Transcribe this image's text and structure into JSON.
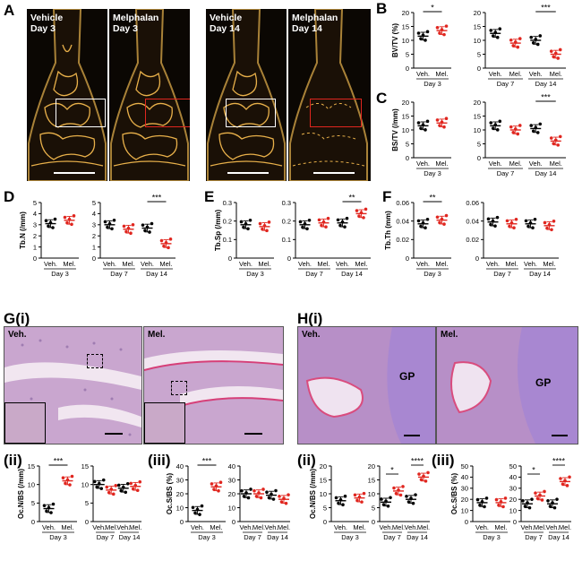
{
  "panel_labels": [
    "A",
    "B",
    "C",
    "D",
    "E",
    "F",
    "G(i)",
    "H(i)",
    "(ii)",
    "(iii)",
    "(ii)",
    "(iii)"
  ],
  "ct_images": [
    {
      "label1": "Vehicle",
      "label2": "Day 3",
      "roi_color": "#ffffff"
    },
    {
      "label1": "Melphalan",
      "label2": "Day 3",
      "roi_color": "#e0261f"
    },
    {
      "label1": "Vehicle",
      "label2": "Day 14",
      "roi_color": "#ffffff"
    },
    {
      "label1": "Melphalan",
      "label2": "Day 14",
      "roi_color": "#e0261f"
    }
  ],
  "histology": {
    "G": [
      {
        "label": "Veh."
      },
      {
        "label": "Mel."
      }
    ],
    "H": [
      {
        "label": "Veh.",
        "gp": "GP"
      },
      {
        "label": "Mel.",
        "gp": "GP"
      }
    ]
  },
  "colors": {
    "vehicle": "#000000",
    "melphalan": "#e0261f",
    "ct_bone": "#e8b04a"
  },
  "chart_data": [
    {
      "id": "B-day3",
      "type": "scatter",
      "ylabel": "BV/TV (%)",
      "ylim": [
        0,
        20
      ],
      "yticks": [
        0,
        5,
        10,
        15,
        20
      ],
      "categories": [
        "Veh.",
        "Mel."
      ],
      "days": [
        "Day 3"
      ],
      "series": [
        {
          "name": "Veh.",
          "values": [
            11.5
          ]
        },
        {
          "name": "Mel.",
          "values": [
            13.5
          ]
        }
      ],
      "sig": [
        {
          "label": "*"
        }
      ]
    },
    {
      "id": "B-day7-14",
      "type": "scatter",
      "ylim": [
        0,
        20
      ],
      "yticks": [
        0,
        5,
        10,
        15,
        20
      ],
      "categories": [
        "Veh.",
        "Mel.",
        "Veh.",
        "Mel."
      ],
      "days": [
        "Day 7",
        "Day 14"
      ],
      "series": [
        {
          "name": "Veh.",
          "values": [
            12.5,
            10
          ]
        },
        {
          "name": "Mel.",
          "values": [
            9,
            5
          ]
        }
      ],
      "sig": [
        {
          "label": "***"
        }
      ]
    },
    {
      "id": "C-day3",
      "type": "scatter",
      "ylabel": "BS/TV (/mm)",
      "ylim": [
        0,
        20
      ],
      "yticks": [
        0,
        5,
        10,
        15,
        20
      ],
      "categories": [
        "Veh.",
        "Mel."
      ],
      "days": [
        "Day 3"
      ],
      "series": [
        {
          "name": "Veh.",
          "values": [
            11.5
          ]
        },
        {
          "name": "Mel.",
          "values": [
            12.5
          ]
        }
      ],
      "sig": []
    },
    {
      "id": "C-day7-14",
      "type": "scatter",
      "ylim": [
        0,
        20
      ],
      "yticks": [
        0,
        5,
        10,
        15,
        20
      ],
      "categories": [
        "Veh.",
        "Mel.",
        "Veh.",
        "Mel."
      ],
      "days": [
        "Day 7",
        "Day 14"
      ],
      "series": [
        {
          "name": "Veh.",
          "values": [
            11.5,
            10.5
          ]
        },
        {
          "name": "Mel.",
          "values": [
            10,
            6
          ]
        }
      ],
      "sig": [
        {
          "label": "***"
        }
      ]
    },
    {
      "id": "D-day3",
      "type": "scatter",
      "ylabel": "Tb.N (/mm)",
      "ylim": [
        0,
        5
      ],
      "yticks": [
        0,
        1,
        2,
        3,
        4,
        5
      ],
      "categories": [
        "Veh.",
        "Mel."
      ],
      "days": [
        "Day 3"
      ],
      "series": [
        {
          "name": "Veh.",
          "values": [
            3.1
          ]
        },
        {
          "name": "Mel.",
          "values": [
            3.4
          ]
        }
      ],
      "sig": []
    },
    {
      "id": "D-day7-14",
      "type": "scatter",
      "ylim": [
        0,
        5
      ],
      "yticks": [
        0,
        1,
        2,
        3,
        4,
        5
      ],
      "categories": [
        "Veh.",
        "Mel.",
        "Veh.",
        "Mel."
      ],
      "days": [
        "Day 7",
        "Day 14"
      ],
      "series": [
        {
          "name": "Veh.",
          "values": [
            3,
            2.7
          ]
        },
        {
          "name": "Mel.",
          "values": [
            2.6,
            1.3
          ]
        }
      ],
      "sig": [
        {
          "label": "***"
        }
      ]
    },
    {
      "id": "E-day3",
      "type": "scatter",
      "ylabel": "Tb.Sp (/mm)",
      "ylim": [
        0,
        0.3
      ],
      "yticks": [
        0,
        0.1,
        0.2,
        0.3
      ],
      "categories": [
        "Veh.",
        "Mel."
      ],
      "days": [
        "Day 3"
      ],
      "series": [
        {
          "name": "Veh.",
          "values": [
            0.18
          ]
        },
        {
          "name": "Mel.",
          "values": [
            0.17
          ]
        }
      ],
      "sig": []
    },
    {
      "id": "E-day7-14",
      "type": "scatter",
      "ylim": [
        0,
        0.3
      ],
      "yticks": [
        0,
        0.1,
        0.2,
        0.3
      ],
      "categories": [
        "Veh.",
        "Mel.",
        "Veh.",
        "Mel."
      ],
      "days": [
        "Day 7",
        "Day 14"
      ],
      "series": [
        {
          "name": "Veh.",
          "values": [
            0.18,
            0.19
          ]
        },
        {
          "name": "Mel.",
          "values": [
            0.19,
            0.24
          ]
        }
      ],
      "sig": [
        {
          "label": "**"
        }
      ]
    },
    {
      "id": "F-day3",
      "type": "scatter",
      "ylabel": "Tb.Th (mm)",
      "ylim": [
        0,
        0.06
      ],
      "yticks": [
        0,
        0.02,
        0.04,
        0.06
      ],
      "categories": [
        "Veh.",
        "Mel."
      ],
      "days": [
        "Day 3"
      ],
      "series": [
        {
          "name": "Veh.",
          "values": [
            0.037
          ]
        },
        {
          "name": "Mel.",
          "values": [
            0.041
          ]
        }
      ],
      "sig": [
        {
          "label": "**"
        }
      ]
    },
    {
      "id": "F-day7-14",
      "type": "scatter",
      "ylim": [
        0,
        0.06
      ],
      "yticks": [
        0,
        0.02,
        0.04,
        0.06
      ],
      "categories": [
        "Veh.",
        "Mel.",
        "Veh.",
        "Mel."
      ],
      "days": [
        "Day 7",
        "Day 14"
      ],
      "series": [
        {
          "name": "Veh.",
          "values": [
            0.039,
            0.037
          ]
        },
        {
          "name": "Mel.",
          "values": [
            0.037,
            0.035
          ]
        }
      ],
      "sig": []
    },
    {
      "id": "Gii-day3",
      "type": "scatter",
      "ylabel": "Oc.N/BS (/mm)",
      "ylim": [
        0,
        15
      ],
      "yticks": [
        0,
        5,
        10,
        15
      ],
      "categories": [
        "Veh.",
        "Mel."
      ],
      "days": [
        "Day 3"
      ],
      "series": [
        {
          "name": "Veh.",
          "values": [
            3.5
          ]
        },
        {
          "name": "Mel.",
          "values": [
            11
          ]
        }
      ],
      "sig": [
        {
          "label": "***"
        }
      ]
    },
    {
      "id": "Gii-day7-14",
      "type": "scatter",
      "ylim": [
        0,
        15
      ],
      "yticks": [
        0,
        5,
        10,
        15
      ],
      "categories": [
        "Veh.",
        "Mel.",
        "Veh.",
        "Mel."
      ],
      "days": [
        "Day 7",
        "Day 14"
      ],
      "series": [
        {
          "name": "Veh.",
          "values": [
            10,
            9
          ]
        },
        {
          "name": "Mel.",
          "values": [
            8.5,
            9.5
          ]
        }
      ],
      "sig": []
    },
    {
      "id": "Giii-day3",
      "type": "scatter",
      "ylabel": "Oc.S/BS (%)",
      "ylim": [
        0,
        40
      ],
      "yticks": [
        0,
        10,
        20,
        30,
        40
      ],
      "categories": [
        "Veh.",
        "Mel."
      ],
      "days": [
        "Day 3"
      ],
      "series": [
        {
          "name": "Veh.",
          "values": [
            8
          ]
        },
        {
          "name": "Mel.",
          "values": [
            25
          ]
        }
      ],
      "sig": [
        {
          "label": "***"
        }
      ]
    },
    {
      "id": "Giii-day7-14",
      "type": "scatter",
      "ylim": [
        0,
        40
      ],
      "yticks": [
        0,
        10,
        20,
        30,
        40
      ],
      "categories": [
        "Veh.",
        "Mel.",
        "Veh.",
        "Mel."
      ],
      "days": [
        "Day 7",
        "Day 14"
      ],
      "series": [
        {
          "name": "Veh.",
          "values": [
            20,
            19
          ]
        },
        {
          "name": "Mel.",
          "values": [
            20,
            16
          ]
        }
      ],
      "sig": []
    },
    {
      "id": "Hii-day3",
      "type": "scatter",
      "ylabel": "Oc.N/BS (/mm)",
      "ylim": [
        0,
        20
      ],
      "yticks": [
        0,
        5,
        10,
        15,
        20
      ],
      "categories": [
        "Veh.",
        "Mel."
      ],
      "days": [
        "Day 3"
      ],
      "series": [
        {
          "name": "Veh.",
          "values": [
            7.5
          ]
        },
        {
          "name": "Mel.",
          "values": [
            8.5
          ]
        }
      ],
      "sig": []
    },
    {
      "id": "Hii-day7-14",
      "type": "scatter",
      "ylim": [
        0,
        20
      ],
      "yticks": [
        0,
        5,
        10,
        15,
        20
      ],
      "categories": [
        "Veh.",
        "Mel.",
        "Veh.",
        "Mel."
      ],
      "days": [
        "Day 7",
        "Day 14"
      ],
      "series": [
        {
          "name": "Veh.",
          "values": [
            7,
            8
          ]
        },
        {
          "name": "Mel.",
          "values": [
            11,
            16
          ]
        }
      ],
      "sig": [
        {
          "label": "*"
        },
        {
          "label": "****"
        }
      ]
    },
    {
      "id": "Hiii-day3",
      "type": "scatter",
      "ylabel": "Oc.S/BS (%)",
      "ylim": [
        0,
        50
      ],
      "yticks": [
        0,
        10,
        20,
        30,
        40,
        50
      ],
      "categories": [
        "Veh.",
        "Mel."
      ],
      "days": [
        "Day 3"
      ],
      "series": [
        {
          "name": "Veh.",
          "values": [
            17
          ]
        },
        {
          "name": "Mel.",
          "values": [
            17
          ]
        }
      ],
      "sig": []
    },
    {
      "id": "Hiii-day7-14",
      "type": "scatter",
      "ylim": [
        0,
        50
      ],
      "yticks": [
        0,
        10,
        20,
        30,
        40,
        50
      ],
      "categories": [
        "Veh.",
        "Mel.",
        "Veh.",
        "Mel."
      ],
      "days": [
        "Day 7",
        "Day 14"
      ],
      "series": [
        {
          "name": "Veh.",
          "values": [
            16,
            16
          ]
        },
        {
          "name": "Mel.",
          "values": [
            23,
            36
          ]
        }
      ],
      "sig": [
        {
          "label": "*"
        },
        {
          "label": "****"
        }
      ]
    }
  ]
}
